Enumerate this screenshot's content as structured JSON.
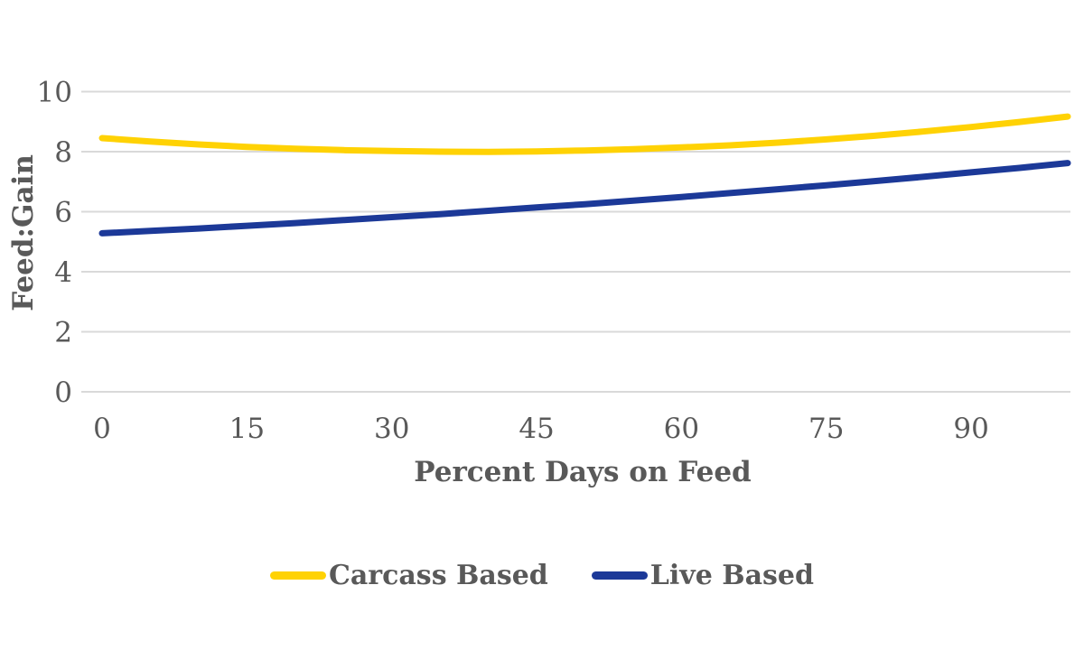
{
  "page": {
    "background": "#FFFFFF"
  },
  "style_colors": {
    "axis_text": "#595959",
    "gridline": "#D9D9D9"
  },
  "chart_data": {
    "type": "line",
    "title": "",
    "xlabel": "Percent Days on Feed",
    "ylabel": "Feed:Gain",
    "xlim": [
      0,
      100
    ],
    "ylim": [
      0,
      10
    ],
    "x_ticks": [
      0,
      15,
      30,
      45,
      60,
      75,
      90
    ],
    "y_ticks": [
      0,
      2,
      4,
      6,
      8,
      10
    ],
    "grid": "horizontal-only",
    "legend_position": "bottom-center",
    "line_width": 7,
    "x": [
      0,
      5,
      10,
      15,
      20,
      25,
      30,
      35,
      40,
      45,
      50,
      55,
      60,
      65,
      70,
      75,
      80,
      85,
      90,
      95,
      100
    ],
    "series": [
      {
        "name": "Carcass Based",
        "color": "#FFD204",
        "values": [
          8.45,
          8.34,
          8.24,
          8.16,
          8.1,
          8.05,
          8.02,
          8.0,
          7.99,
          8.01,
          8.04,
          8.08,
          8.14,
          8.21,
          8.3,
          8.41,
          8.53,
          8.67,
          8.82,
          8.99,
          9.17
        ]
      },
      {
        "name": "Live Based",
        "color": "#1C3998",
        "values": [
          5.28,
          5.36,
          5.44,
          5.53,
          5.62,
          5.72,
          5.82,
          5.92,
          6.03,
          6.14,
          6.25,
          6.37,
          6.49,
          6.62,
          6.75,
          6.88,
          7.02,
          7.16,
          7.31,
          7.46,
          7.62
        ]
      }
    ]
  }
}
